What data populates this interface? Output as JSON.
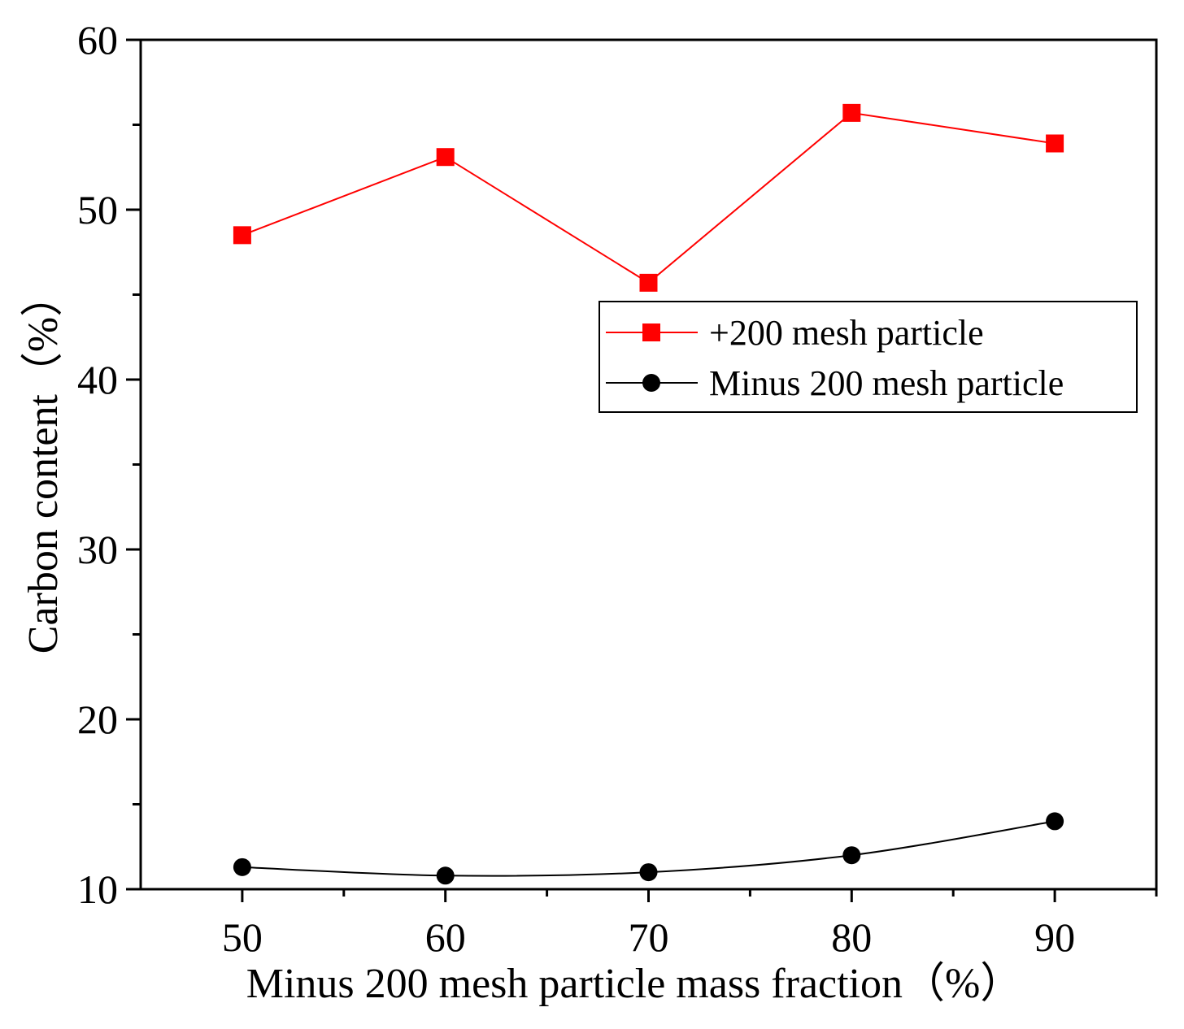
{
  "chart_data": {
    "type": "line",
    "title": "",
    "xlabel": "Minus 200 mesh particle mass fraction（%）",
    "ylabel": "Carbon content（%）",
    "x": [
      50,
      60,
      70,
      80,
      90
    ],
    "xlim": [
      45,
      95
    ],
    "ylim": [
      10,
      60
    ],
    "xticks": [
      50,
      60,
      70,
      80,
      90
    ],
    "yticks": [
      10,
      20,
      30,
      40,
      50,
      60
    ],
    "grid": false,
    "legend_position": "top-right",
    "series": [
      {
        "name": "+200 mesh particle",
        "color": "#ff0000",
        "marker": "square",
        "values": [
          48.5,
          53.1,
          45.7,
          55.7,
          53.9
        ]
      },
      {
        "name": "Minus 200 mesh particle",
        "color": "#000000",
        "marker": "circle",
        "values": [
          11.3,
          10.8,
          11.0,
          12.0,
          14.0
        ]
      }
    ]
  }
}
